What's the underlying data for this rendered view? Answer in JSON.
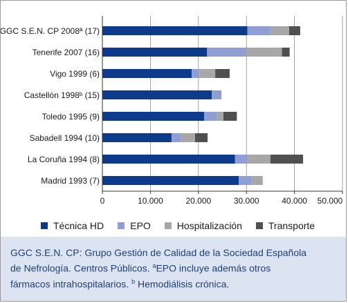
{
  "chart_data": {
    "type": "bar",
    "orientation": "horizontal",
    "stacked": true,
    "categories": [
      "GGC S.E.N. CP 2008ª (17)",
      "Tenerife 2007 (16)",
      "Vigo 1999 (6)",
      "Castellón 1998ᵇ (15)",
      "Toledo 1995  (9)",
      "Sabadell 1994 (10)",
      "La Coruña 1994 (8)",
      "Madrid 1993 (7)"
    ],
    "series": [
      {
        "name": "Técnica HD",
        "values": [
          30200,
          21800,
          18600,
          22800,
          21200,
          14400,
          27600,
          28400
        ]
      },
      {
        "name": "EPO",
        "values": [
          4800,
          8200,
          1600,
          2000,
          2600,
          1900,
          2700,
          2700
        ]
      },
      {
        "name": "Hospitalización",
        "values": [
          3900,
          7400,
          3300,
          0,
          1400,
          3000,
          4700,
          2300
        ]
      },
      {
        "name": "Transporte",
        "values": [
          2300,
          1600,
          3000,
          0,
          2800,
          2600,
          6800,
          0
        ]
      }
    ],
    "xlim": [
      0,
      50000
    ],
    "xticks": [
      0,
      10000,
      20000,
      30000,
      40000,
      50000
    ],
    "xtick_labels": [
      "0",
      "10.000",
      "20.000",
      "30.000",
      "40.000",
      "50.000"
    ],
    "grid": "vertical",
    "legend": "bottom",
    "colors": [
      "#0e3a8c",
      "#8f9fd4",
      "#a7a7a7",
      "#505050"
    ],
    "title": "",
    "xlabel": "",
    "ylabel": ""
  },
  "legend_items": [
    {
      "label": "Técnica HD",
      "color": "#0e3a8c"
    },
    {
      "label": "EPO",
      "color": "#8f9fd4"
    },
    {
      "label": "Hospitalización",
      "color": "#a7a7a7"
    },
    {
      "label": "Transporte",
      "color": "#505050"
    }
  ],
  "caption": {
    "line1": "GGC S.E.N. CP: Grupo Gestión de Calidad de la Sociedad Española",
    "line2a": "de Nefrología. Centros Públicos. ",
    "sup_a": "a",
    "line2b": "EPO incluye además otros",
    "line3a": "fármacos intrahospitalarios. ",
    "sup_b": "b",
    "line3b": " Hemodiálisis crónica."
  }
}
